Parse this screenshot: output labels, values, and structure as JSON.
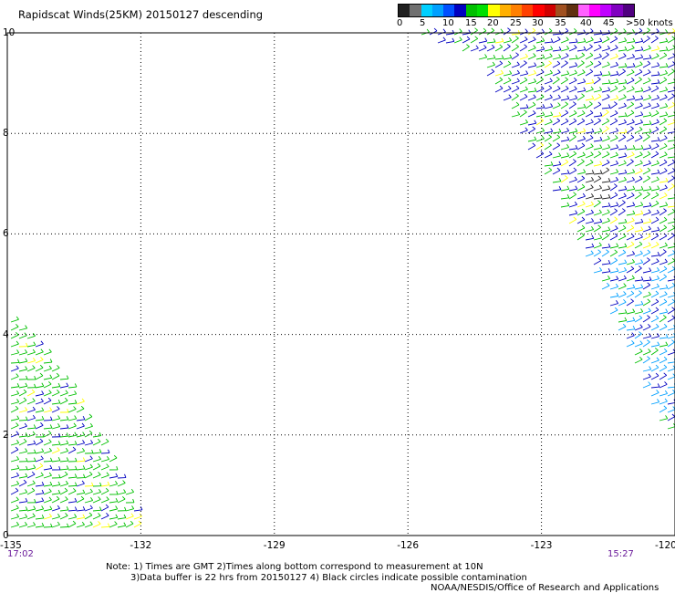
{
  "title": "Rapidscat Winds(25KM) 20150127 descending",
  "legend": {
    "colors": [
      "#202020",
      "#707070",
      "#00d0ff",
      "#00a0ff",
      "#0050ff",
      "#0000c0",
      "#00c000",
      "#00e000",
      "#ffff00",
      "#ffb000",
      "#ff8000",
      "#ff4000",
      "#ff0000",
      "#d00000",
      "#a05020",
      "#603010",
      "#ff60ff",
      "#ff00ff",
      "#c000ff",
      "#8000c0",
      "#500080"
    ],
    "labels": [
      "0",
      "5",
      "10",
      "15",
      "20",
      "25",
      "30",
      "35",
      "40",
      "45",
      ">50 knots"
    ]
  },
  "axes": {
    "lat_ticks": [
      "0",
      "2",
      "4",
      "6",
      "8",
      "10"
    ],
    "lon_ticks": [
      "-135",
      "-132",
      "-129",
      "-126",
      "-123",
      "-120"
    ],
    "lat_range": [
      0,
      10
    ],
    "lon_range": [
      -135,
      -120
    ],
    "grid": "dotted"
  },
  "times": {
    "left": "17:02",
    "right": "15:27"
  },
  "notes": [
    "Note: 1) Times are GMT 2)Times along bottom correspond to measurement at 10N",
    "3)Data buffer is 22 hrs from 20150127 4) Black circles indicate possible contamination",
    "NOAA/NESDIS/Office of Research and Applications"
  ],
  "swaths": [
    {
      "name": "east-swath",
      "polygon_lonlat": [
        [
          -125.9,
          10
        ],
        [
          -120,
          10
        ],
        [
          -120,
          2
        ],
        [
          -120.3,
          2.1
        ],
        [
          -121,
          3.5
        ],
        [
          -122,
          5.5
        ],
        [
          -123.5,
          8
        ],
        [
          -124.5,
          9.5
        ]
      ],
      "dominant_colors": [
        "#0000c0",
        "#00c000",
        "#00a0ff",
        "#ffff00",
        "#202020"
      ]
    },
    {
      "name": "west-swath",
      "polygon_lonlat": [
        [
          -135,
          4.3
        ],
        [
          -134.5,
          4
        ],
        [
          -133.5,
          2.8
        ],
        [
          -132.5,
          1.2
        ],
        [
          -132,
          0.2
        ],
        [
          -132,
          0
        ],
        [
          -135,
          0
        ]
      ],
      "dominant_colors": [
        "#00c000",
        "#0000c0",
        "#ffff00"
      ]
    }
  ]
}
